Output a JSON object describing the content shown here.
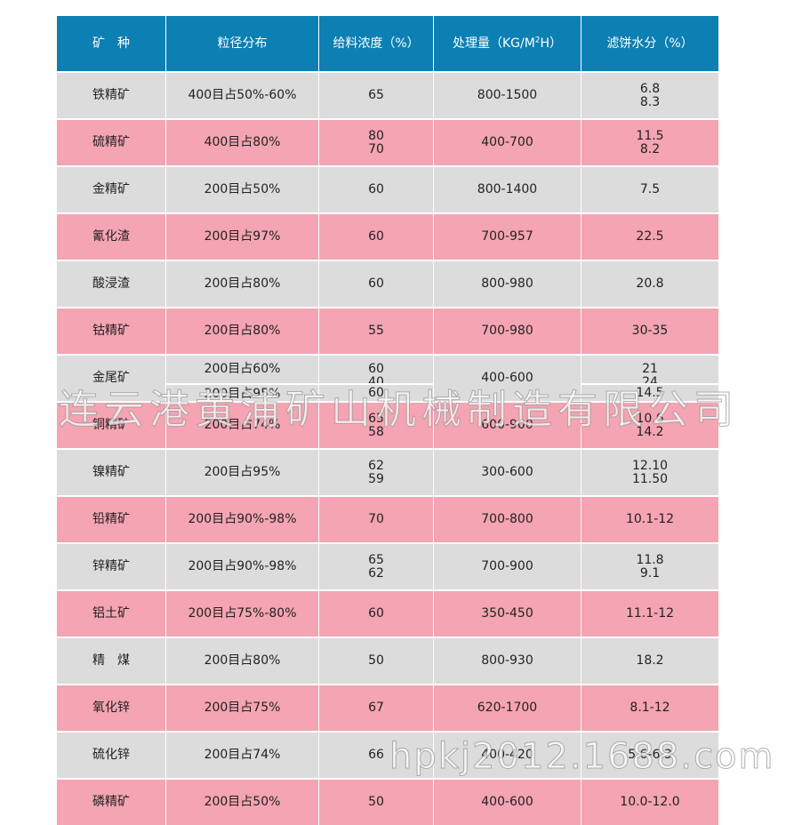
{
  "table": {
    "headers": [
      "矿　种",
      "粒径分布",
      "给料浓度（%）",
      "处理量（KG/M",
      "2",
      "H）",
      "滤饼水分（%）"
    ],
    "rows": [
      {
        "ore": "铁精矿",
        "size": "400目占50%-60%",
        "conc": [
          "65"
        ],
        "capacity": "800-1500",
        "moisture": [
          "6.8",
          "8.3"
        ]
      },
      {
        "ore": "硫精矿",
        "size": "400目占80%",
        "conc": [
          "80",
          "70"
        ],
        "capacity": "400-700",
        "moisture": [
          "11.5",
          "8.2"
        ]
      },
      {
        "ore": "金精矿",
        "size": "200目占50%",
        "conc": [
          "60"
        ],
        "capacity": "800-1400",
        "moisture": [
          "7.5"
        ]
      },
      {
        "ore": "氰化渣",
        "size": "200目占97%",
        "conc": [
          "60"
        ],
        "capacity": "700-957",
        "moisture": [
          "22.5"
        ]
      },
      {
        "ore": "酸浸渣",
        "size": "200目占80%",
        "conc": [
          "60"
        ],
        "capacity": "800-980",
        "moisture": [
          "20.8"
        ]
      },
      {
        "ore": "钴精矿",
        "size": "200目占80%",
        "conc": [
          "55"
        ],
        "capacity": "700-980",
        "moisture": [
          "30-35"
        ]
      },
      {
        "ore": "金尾矿",
        "size": "200目占60%",
        "size2": "200目占95%",
        "conc": [
          "60",
          "40"
        ],
        "conc2": "60",
        "capacity": "400-600",
        "moisture": [
          "21",
          "24"
        ],
        "moisture2": "14.5"
      },
      {
        "ore": "铜精矿",
        "size": "200目占74%",
        "conc": [
          "65",
          "58"
        ],
        "capacity": "600-900",
        "moisture": [
          "10.6",
          "14.2"
        ]
      },
      {
        "ore": "镍精矿",
        "size": "200目占95%",
        "conc": [
          "62",
          "59"
        ],
        "capacity": "300-600",
        "moisture": [
          "12.10",
          "11.50"
        ]
      },
      {
        "ore": "铅精矿",
        "size": "200目占90%-98%",
        "conc": [
          "70"
        ],
        "capacity": "700-800",
        "moisture": [
          "10.1-12"
        ]
      },
      {
        "ore": "锌精矿",
        "size": "200目占90%-98%",
        "conc": [
          "65",
          "62"
        ],
        "capacity": "700-900",
        "moisture": [
          "11.8",
          "9.1"
        ]
      },
      {
        "ore": "铝土矿",
        "size": "200目占75%-80%",
        "conc": [
          "60"
        ],
        "capacity": "350-450",
        "moisture": [
          "11.1-12"
        ]
      },
      {
        "ore": "精　煤",
        "size": "200目占80%",
        "conc": [
          "50"
        ],
        "capacity": "800-930",
        "moisture": [
          "18.2"
        ]
      },
      {
        "ore": "氧化锌",
        "size": "200目占75%",
        "conc": [
          "67"
        ],
        "capacity": "620-1700",
        "moisture": [
          "8.1-12"
        ]
      },
      {
        "ore": "硫化锌",
        "size": "200目占74%",
        "conc": [
          "66"
        ],
        "capacity": "400-420",
        "moisture": [
          "5.6-6.3"
        ]
      },
      {
        "ore": "磷精矿",
        "size": "200目占50%",
        "conc": [
          "50"
        ],
        "capacity": "400-600",
        "moisture": [
          "10.0-12.0"
        ]
      }
    ]
  },
  "watermarks": {
    "company": "连云港黄浦矿山机械制造有限公司",
    "site": "hpkj2012.1688.com"
  },
  "colors": {
    "header": "#0c7fb3",
    "row_gray": "#dcdcdc",
    "row_pink": "#f4a4b2"
  }
}
